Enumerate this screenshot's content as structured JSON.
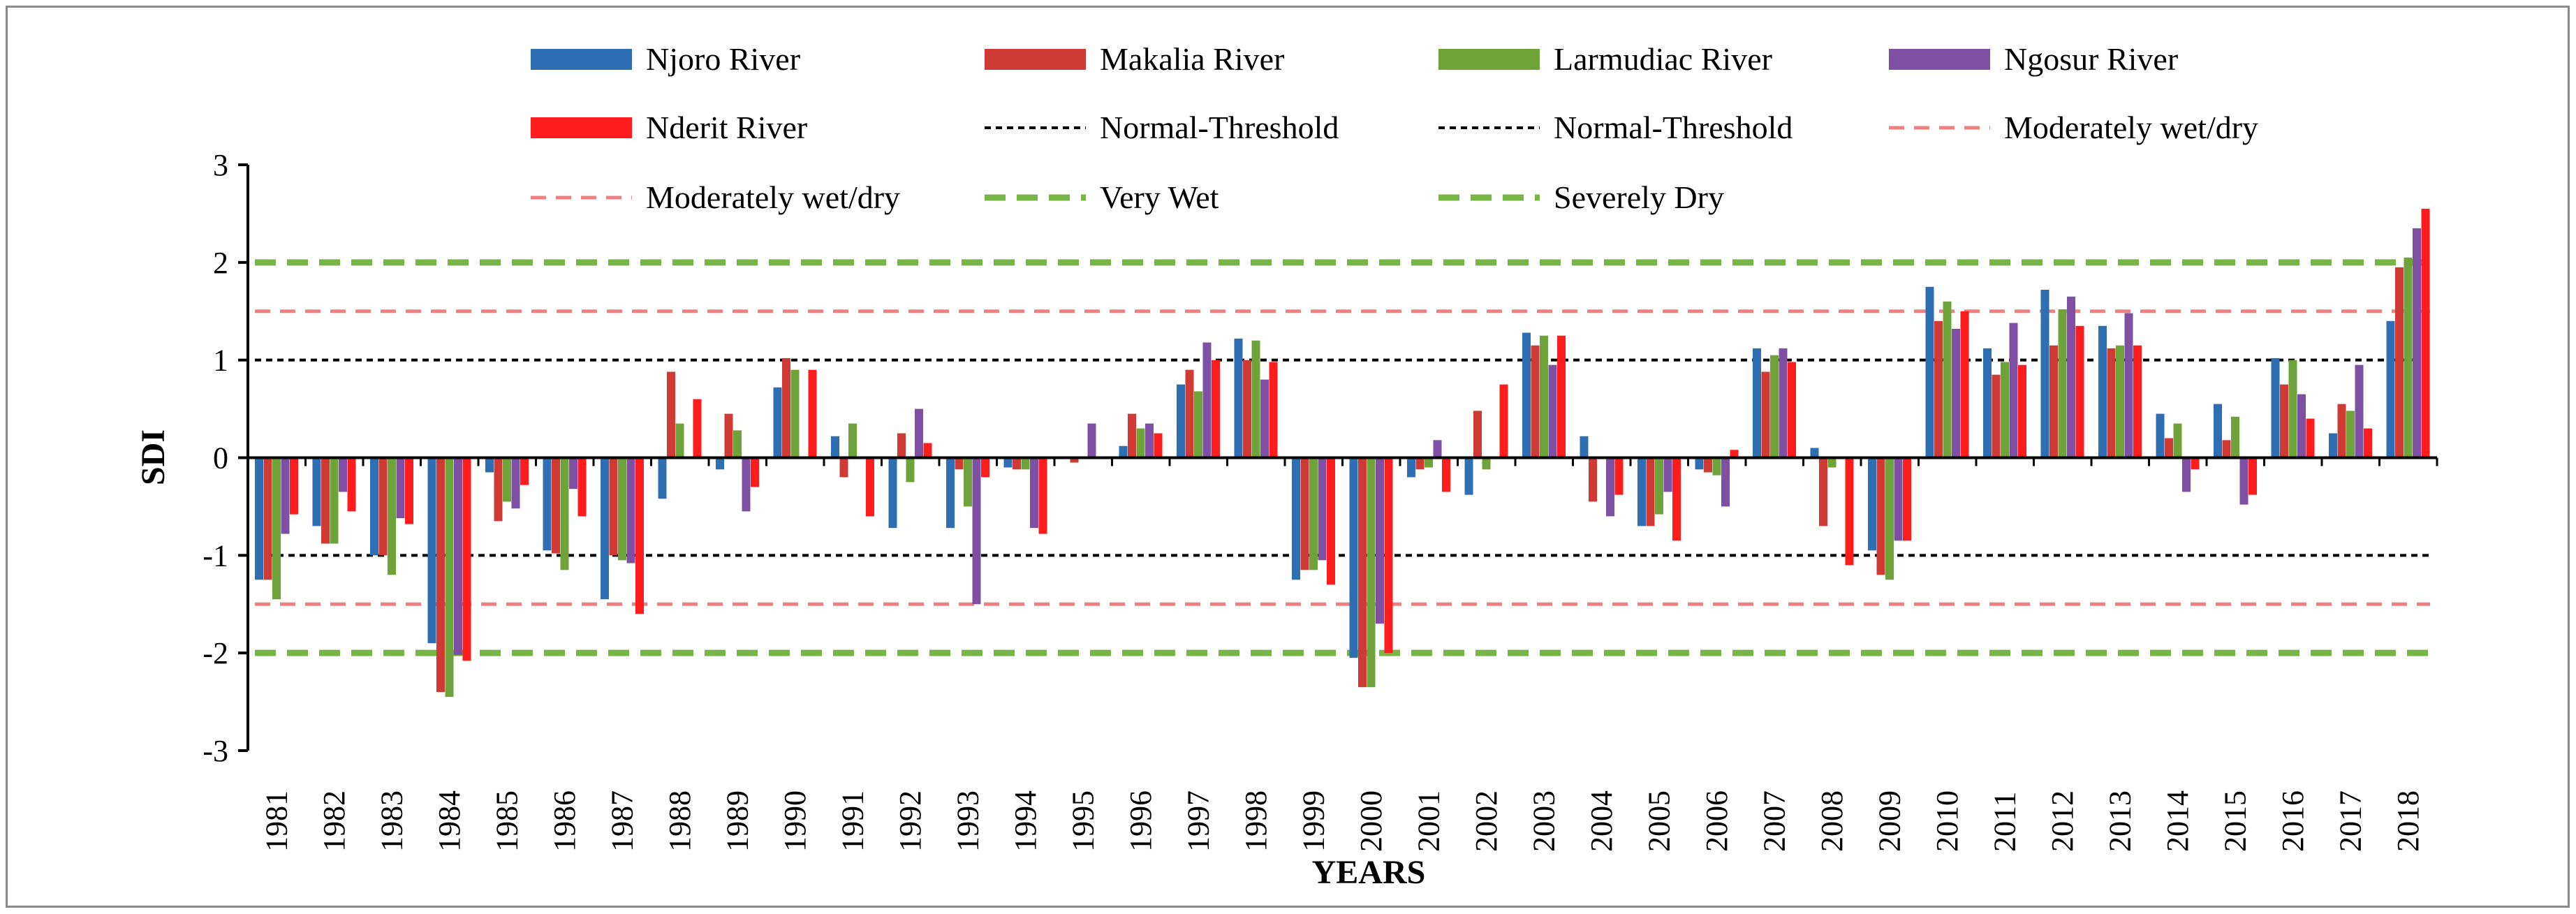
{
  "chart_data": {
    "type": "bar",
    "title": "",
    "xlabel": "YEARS",
    "ylabel": "SDI",
    "ylim": [
      -3,
      3
    ],
    "yticks": [
      -3,
      -2,
      -1,
      0,
      1,
      2,
      3
    ],
    "categories": [
      "1981",
      "1982",
      "1983",
      "1984",
      "1985",
      "1986",
      "1987",
      "1988",
      "1989",
      "1990",
      "1991",
      "1992",
      "1993",
      "1994",
      "1995",
      "1996",
      "1997",
      "1998",
      "1999",
      "2000",
      "2001",
      "2002",
      "2003",
      "2004",
      "2005",
      "2006",
      "2007",
      "2008",
      "2009",
      "2010",
      "2011",
      "2012",
      "2013",
      "2014",
      "2015",
      "2016",
      "2017",
      "2018"
    ],
    "series": [
      {
        "name": "Njoro River",
        "color": "#2e6fb4",
        "values": [
          -1.25,
          -0.7,
          -1.0,
          -1.9,
          -0.15,
          -0.95,
          -1.45,
          -0.42,
          -0.12,
          0.72,
          0.22,
          -0.72,
          -0.72,
          -0.1,
          0.0,
          0.12,
          0.75,
          1.22,
          -1.25,
          -2.05,
          -0.2,
          -0.38,
          1.28,
          0.22,
          -0.7,
          -0.12,
          1.12,
          0.1,
          -0.95,
          1.75,
          1.12,
          1.72,
          1.35,
          0.45,
          0.55,
          1.02,
          0.25,
          1.4
        ]
      },
      {
        "name": "Makalia River",
        "color": "#d03a35",
        "values": [
          -1.25,
          -0.88,
          -1.0,
          -2.4,
          -0.65,
          -0.98,
          -1.0,
          0.88,
          0.45,
          1.02,
          -0.2,
          0.25,
          -0.12,
          -0.12,
          -0.05,
          0.45,
          0.9,
          1.0,
          -1.15,
          -2.35,
          -0.12,
          0.48,
          1.15,
          -0.45,
          -0.7,
          -0.15,
          0.88,
          -0.7,
          -1.2,
          1.4,
          0.85,
          1.15,
          1.12,
          0.2,
          0.18,
          0.75,
          0.55,
          1.95
        ]
      },
      {
        "name": "Larmudiac River",
        "color": "#6ea33a",
        "values": [
          -1.45,
          -0.88,
          -1.2,
          -2.45,
          -0.45,
          -1.15,
          -1.05,
          0.35,
          0.28,
          0.9,
          0.35,
          -0.25,
          -0.5,
          -0.12,
          0.0,
          0.3,
          0.68,
          1.2,
          -1.15,
          -2.35,
          -0.1,
          -0.12,
          1.25,
          0.0,
          -0.58,
          -0.18,
          1.05,
          -0.1,
          -1.25,
          1.6,
          0.98,
          1.52,
          1.15,
          0.35,
          0.42,
          1.0,
          0.48,
          2.05
        ]
      },
      {
        "name": "Ngosur River",
        "color": "#7e4fa3",
        "values": [
          -0.78,
          -0.35,
          -0.62,
          -2.02,
          -0.52,
          -0.32,
          -1.08,
          0.0,
          -0.55,
          0.0,
          0.0,
          0.5,
          -1.5,
          -0.72,
          0.35,
          0.35,
          1.18,
          0.8,
          -1.05,
          -1.7,
          0.18,
          0.0,
          0.95,
          -0.6,
          -0.35,
          -0.5,
          1.12,
          0.0,
          -0.85,
          1.32,
          1.38,
          1.65,
          1.48,
          -0.35,
          -0.48,
          0.65,
          0.95,
          2.35
        ]
      },
      {
        "name": "Nderit River",
        "color": "#ff1c1c",
        "values": [
          -0.58,
          -0.55,
          -0.68,
          -2.08,
          -0.28,
          -0.6,
          -1.6,
          0.6,
          -0.3,
          0.9,
          -0.6,
          0.15,
          -0.2,
          -0.78,
          0.0,
          0.25,
          1.0,
          0.98,
          -1.3,
          -2.0,
          -0.35,
          0.75,
          1.25,
          -0.38,
          -0.85,
          0.08,
          0.98,
          -1.1,
          -0.85,
          1.5,
          0.95,
          1.35,
          1.15,
          -0.12,
          -0.38,
          0.4,
          0.3,
          2.55
        ]
      }
    ],
    "reference_lines": [
      {
        "name": "Normal-Threshold",
        "value": 1,
        "color": "#000000",
        "style": "dotted"
      },
      {
        "name": "Normal-Threshold",
        "value": -1,
        "color": "#000000",
        "style": "dotted"
      },
      {
        "name": "Moderately wet/dry",
        "value": 1.5,
        "color": "#f08080",
        "style": "dashed"
      },
      {
        "name": "Moderately wet/dry",
        "value": -1.5,
        "color": "#f08080",
        "style": "dashed"
      },
      {
        "name": "Very Wet",
        "value": 2,
        "color": "#77b546",
        "style": "dashed-thick"
      },
      {
        "name": "Severely Dry",
        "value": -2,
        "color": "#77b546",
        "style": "dashed-thick"
      }
    ],
    "legend": {
      "position": "top",
      "columns": 4
    },
    "grid": false
  }
}
